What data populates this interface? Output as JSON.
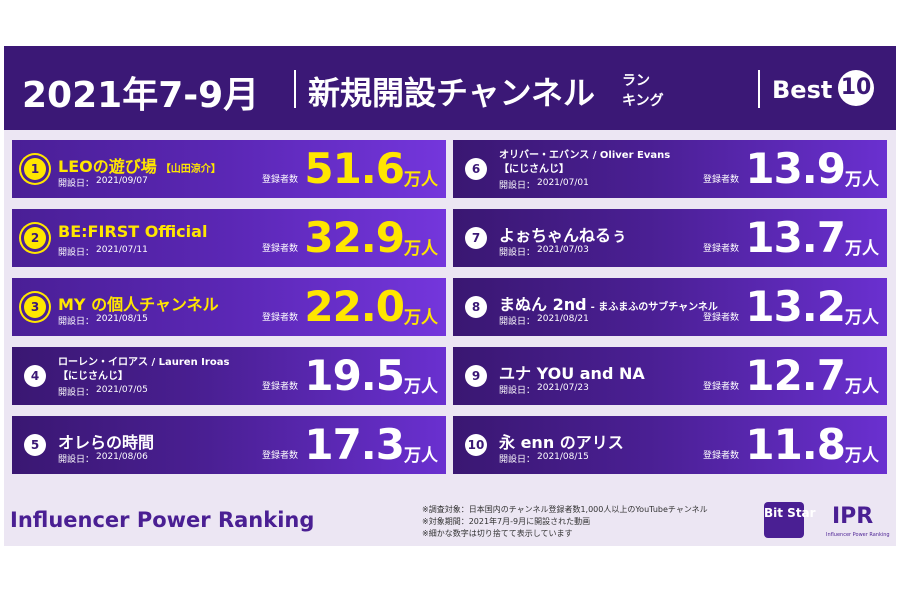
{
  "header": {
    "period": "2021年7-9月",
    "title": "新規開設チャンネル",
    "title_small_1": "ラン",
    "title_small_2": "キング",
    "best": "Best",
    "best_number": "10"
  },
  "date_label": "開設日：",
  "subscribers_label": "登録者数",
  "unit": "万人",
  "entries": [
    {
      "rank": 1,
      "name": "LEOの遊び場",
      "tag": "【山田涼介】",
      "date": "2021/09/07",
      "subscribers": "51.6"
    },
    {
      "rank": 2,
      "name": "BE:FIRST Official",
      "date": "2021/07/11",
      "subscribers": "32.9"
    },
    {
      "rank": 3,
      "name": "MY の個人チャンネル",
      "date": "2021/08/15",
      "subscribers": "22.0"
    },
    {
      "rank": 4,
      "name": "ローレン・イロアス / Lauren Iroas",
      "tag": "【にじさんじ】",
      "date": "2021/07/05",
      "subscribers": "19.5"
    },
    {
      "rank": 5,
      "name": "オレらの時間",
      "date": "2021/08/06",
      "subscribers": "17.3"
    },
    {
      "rank": 6,
      "name": "オリバー・エバンス / Oliver Evans",
      "tag": "【にじさんじ】",
      "date": "2021/07/01",
      "subscribers": "13.9"
    },
    {
      "rank": 7,
      "name": "よぉちゃんねるぅ",
      "date": "2021/07/03",
      "subscribers": "13.7"
    },
    {
      "rank": 8,
      "name": "まぬん 2nd",
      "tag": "- まふまふのサブチャンネル",
      "date": "2021/08/21",
      "subscribers": "13.2"
    },
    {
      "rank": 9,
      "name": "ユナ YOU and NA",
      "date": "2021/07/23",
      "subscribers": "12.7"
    },
    {
      "rank": 10,
      "name": "永 enn のアリス",
      "date": "2021/08/15",
      "subscribers": "11.8"
    }
  ],
  "footer": {
    "brand": "Influencer Power Ranking",
    "notes": [
      "※調査対象：日本国内のチャンネル登録者数1,000人以上のYouTubeチャンネル",
      "※対象期間：2021年7月-9月に開設された動画",
      "※細かな数字は切り捨てて表示しています"
    ],
    "logo_1": "Bit Star",
    "logo_2": "IPR",
    "logo_2_sub": "Influencer Power Ranking"
  }
}
